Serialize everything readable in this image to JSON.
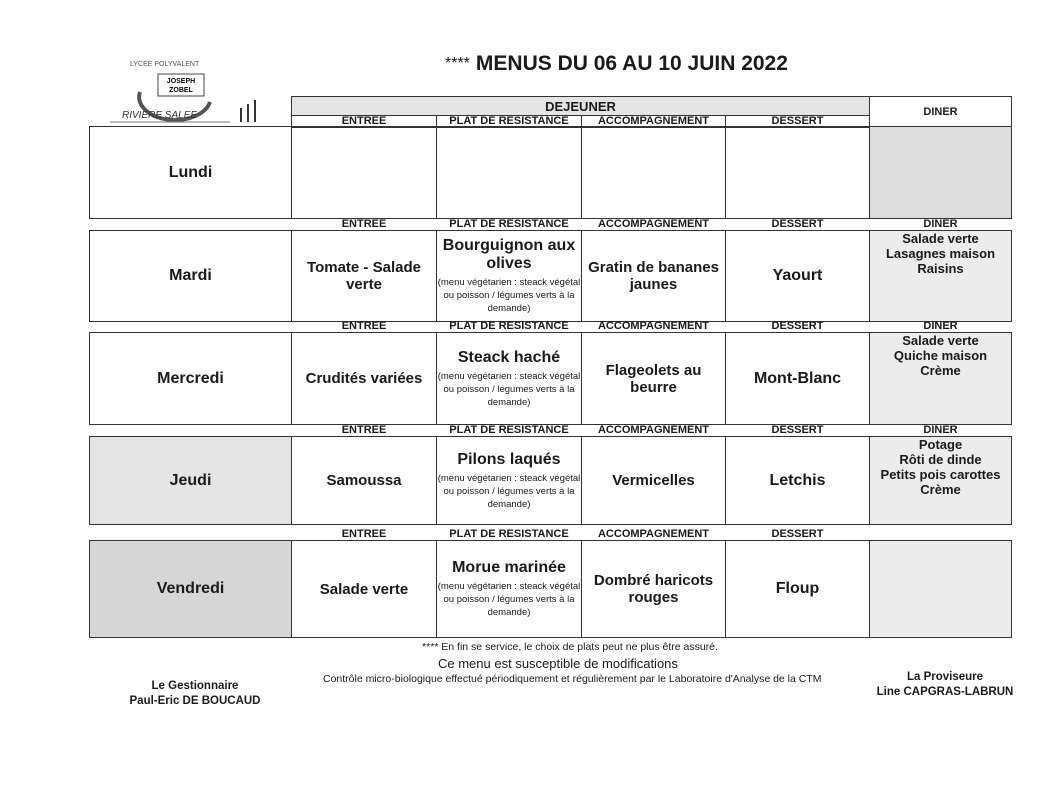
{
  "logo": {
    "top_text": "LYCEE POLYVALENT",
    "center_text": "JOSEPH ZOBEL",
    "bottom_text": "RIVIERE SALEE"
  },
  "title": {
    "stars": "****",
    "text": "MENUS DU 06 AU 10 JUIN 2022"
  },
  "headers": {
    "dejeuner": "DEJEUNER",
    "diner": "DINER",
    "entree": "ENTREE",
    "plat": "PLAT DE RESISTANCE",
    "accompagnement": "ACCOMPAGNEMENT",
    "dessert": "DESSERT"
  },
  "days": [
    {
      "name": "Lundi",
      "entree": "",
      "plat": "",
      "plat_note": "",
      "accompagnement": "",
      "dessert": "",
      "diner": []
    },
    {
      "name": "Mardi",
      "entree": "Tomate - Salade verte",
      "plat": "Bourguignon aux olives",
      "plat_note": "(menu végétarien : steack végétal ou poisson / légumes verts à la demande)",
      "accompagnement": "Gratin de bananes jaunes",
      "dessert": "Yaourt",
      "diner": [
        "Salade verte",
        "Lasagnes maison",
        "Raisins"
      ]
    },
    {
      "name": "Mercredi",
      "entree": "Crudités variées",
      "plat": "Steack haché",
      "plat_note": "(menu végétarien : steack végétal ou poisson / légumes verts à la demande)",
      "accompagnement": "Flageolets au beurre",
      "dessert": "Mont-Blanc",
      "diner": [
        "Salade verte",
        "Quiche maison",
        "Crème"
      ]
    },
    {
      "name": "Jeudi",
      "entree": "Samoussa",
      "plat": "Pilons laqués",
      "plat_note": "(menu végétarien : steack végétal ou poisson / légumes verts à la demande)",
      "accompagnement": "Vermicelles",
      "dessert": "Letchis",
      "diner": [
        "Potage",
        "Rôti de dinde",
        "Petits pois carottes",
        "Crème"
      ]
    },
    {
      "name": "Vendredi",
      "entree": "Salade verte",
      "plat": "Morue marinée",
      "plat_note": "(menu végétarien : steack végétal ou poisson / légumes verts à la demande)",
      "accompagnement": "Dombré haricots rouges",
      "dessert": "Floup",
      "diner": []
    }
  ],
  "footer": {
    "note": "**** En fin se service, le choix de plats peut ne plus être assuré.",
    "modif": "Ce menu est susceptible de modifications",
    "controle": "Contrôle micro-biologique effectué périodiquement et régulièrement par le Laboratoire d'Analyse de la CTM",
    "left_role": "Le Gestionnaire",
    "left_name": "Paul-Eric DE BOUCAUD",
    "right_role": "La Proviseure",
    "right_name": "Line CAPGRAS-LABRUN"
  }
}
